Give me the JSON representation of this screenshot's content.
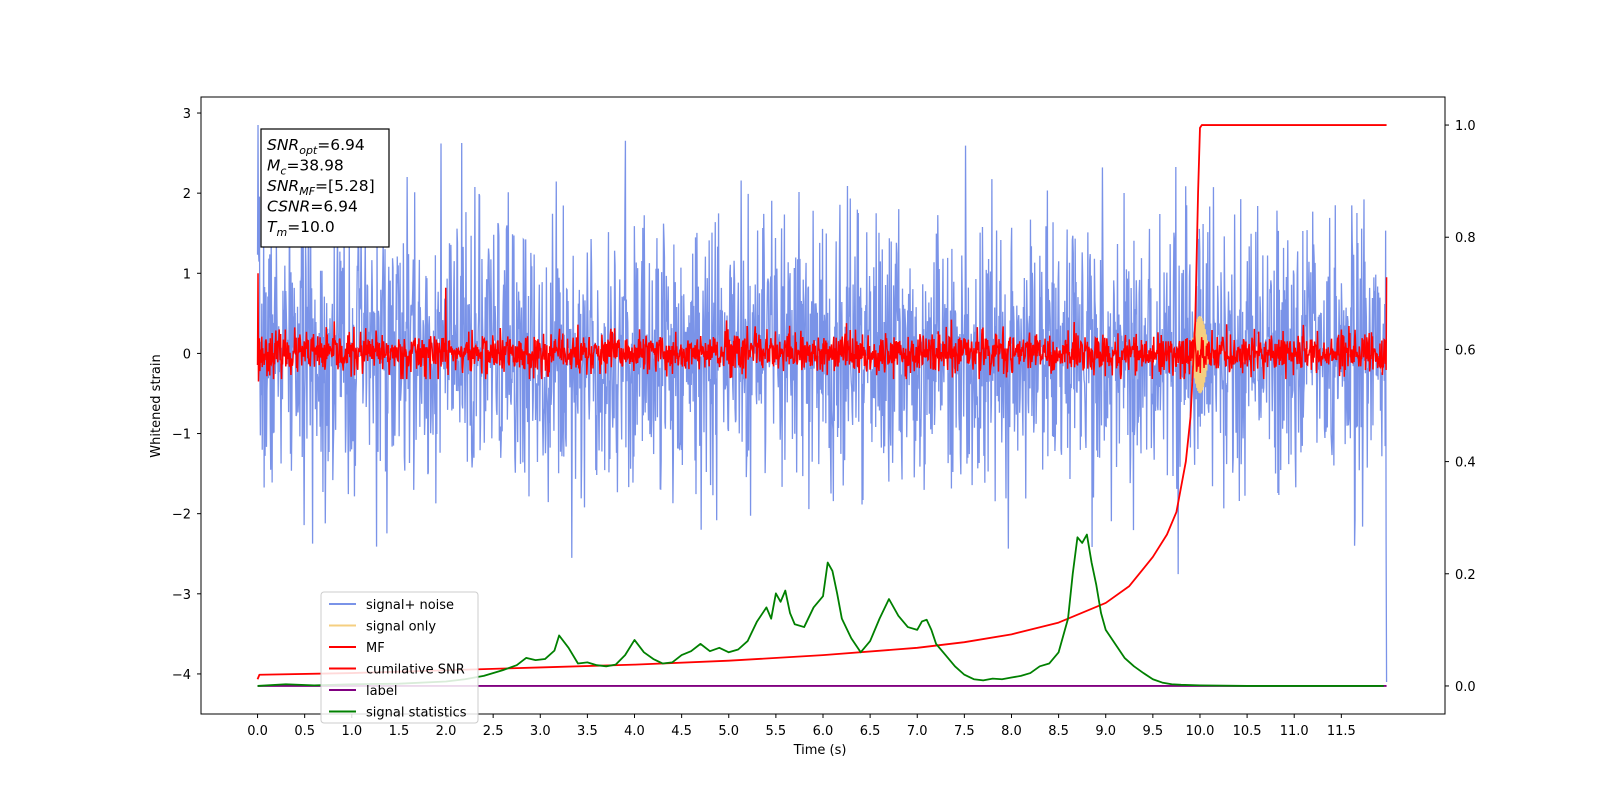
{
  "chart_data": {
    "type": "line",
    "xlabel": "Time (s)",
    "ylabel": "Whitened strain",
    "xlim": [
      -0.6,
      12.6
    ],
    "ylim": [
      -4.5,
      3.2
    ],
    "y2lim": [
      -0.05,
      1.05
    ],
    "x_ticks": [
      "0.0",
      "0.5",
      "1.0",
      "1.5",
      "2.0",
      "2.5",
      "3.0",
      "3.5",
      "4.0",
      "4.5",
      "5.0",
      "5.5",
      "6.0",
      "6.5",
      "7.0",
      "7.5",
      "8.0",
      "8.5",
      "9.0",
      "9.5",
      "10.0",
      "10.5",
      "11.0",
      "11.5"
    ],
    "y_ticks": [
      "3",
      "2",
      "1",
      "0",
      "−1",
      "−2",
      "−3",
      "−4"
    ],
    "y2_ticks": [
      "1.0",
      "0.8",
      "0.6",
      "0.4",
      "0.2",
      "0.0"
    ],
    "annotation_lines": [
      {
        "var": "SNR",
        "sub": "opt",
        "rest": "=6.94"
      },
      {
        "var": "M",
        "sub": "c",
        "rest": "=38.98"
      },
      {
        "var": "SNR",
        "sub": "MF",
        "rest": "=[5.28]"
      },
      {
        "var": "CSNR",
        "sub": "",
        "rest": "=6.94"
      },
      {
        "var": "T",
        "sub": "m",
        "rest": "=10.0"
      }
    ],
    "legend": {
      "placement": "lower-left",
      "entries": [
        {
          "label": "signal+ noise",
          "color": "#7a93e8"
        },
        {
          "label": "signal only",
          "color": "#f5cf80"
        },
        {
          "label": "MF",
          "color": "#ff0000"
        },
        {
          "label": "cumilative SNR",
          "color": "#ff0000"
        },
        {
          "label": "label",
          "color": "#800080"
        },
        {
          "label": "signal statistics",
          "color": "#008000"
        }
      ]
    },
    "series": [
      {
        "name": "signal+ noise",
        "axis": "left",
        "color": "#7a93e8",
        "x_range": [
          0,
          11.98
        ],
        "amplitude_approx": 2.0
      },
      {
        "name": "signal only",
        "axis": "left",
        "color": "#f5cf80",
        "x_range": [
          9.9,
          10.1
        ],
        "peak_approx": 0.5
      },
      {
        "name": "MF",
        "axis": "left",
        "color": "#ff0000",
        "x_range": [
          0,
          11.98
        ],
        "amplitude_approx": 0.4
      },
      {
        "name": "cumilative SNR",
        "axis": "right",
        "color": "#ff0000",
        "x": [
          0.0,
          0.02,
          1.0,
          2.0,
          3.0,
          4.0,
          5.0,
          6.0,
          7.0,
          7.5,
          8.0,
          8.5,
          9.0,
          9.25,
          9.5,
          9.65,
          9.75,
          9.85,
          9.9,
          9.95,
          9.98,
          10.0,
          10.02,
          11.98
        ],
        "y": [
          0.012,
          0.02,
          0.023,
          0.028,
          0.033,
          0.038,
          0.045,
          0.055,
          0.068,
          0.078,
          0.092,
          0.113,
          0.148,
          0.178,
          0.23,
          0.27,
          0.31,
          0.4,
          0.48,
          0.65,
          0.88,
          0.995,
          1.0,
          1.0
        ]
      },
      {
        "name": "label",
        "axis": "right",
        "color": "#800080",
        "x": [
          0.0,
          11.98
        ],
        "y": [
          0.0,
          0.0
        ]
      },
      {
        "name": "signal statistics",
        "axis": "right",
        "color": "#008000",
        "x": [
          0.0,
          0.3,
          0.6,
          1.0,
          1.5,
          2.0,
          2.2,
          2.4,
          2.6,
          2.75,
          2.85,
          2.95,
          3.05,
          3.15,
          3.2,
          3.3,
          3.4,
          3.5,
          3.6,
          3.7,
          3.8,
          3.9,
          4.0,
          4.1,
          4.2,
          4.3,
          4.4,
          4.5,
          4.6,
          4.7,
          4.8,
          4.9,
          5.0,
          5.1,
          5.2,
          5.3,
          5.4,
          5.45,
          5.5,
          5.55,
          5.6,
          5.65,
          5.7,
          5.8,
          5.9,
          6.0,
          6.05,
          6.1,
          6.15,
          6.2,
          6.3,
          6.4,
          6.5,
          6.6,
          6.7,
          6.8,
          6.9,
          7.0,
          7.05,
          7.1,
          7.15,
          7.2,
          7.3,
          7.4,
          7.5,
          7.6,
          7.7,
          7.8,
          7.9,
          8.0,
          8.1,
          8.2,
          8.3,
          8.4,
          8.5,
          8.6,
          8.65,
          8.7,
          8.75,
          8.8,
          8.85,
          8.9,
          8.95,
          9.0,
          9.1,
          9.2,
          9.3,
          9.4,
          9.5,
          9.6,
          9.7,
          9.8,
          10.0,
          10.5,
          11.0,
          11.5,
          11.95
        ],
        "y": [
          0.0,
          0.003,
          0.001,
          0.003,
          0.004,
          0.008,
          0.012,
          0.018,
          0.028,
          0.037,
          0.05,
          0.046,
          0.048,
          0.063,
          0.09,
          0.068,
          0.04,
          0.042,
          0.037,
          0.035,
          0.038,
          0.055,
          0.082,
          0.06,
          0.048,
          0.04,
          0.042,
          0.055,
          0.062,
          0.075,
          0.062,
          0.068,
          0.06,
          0.065,
          0.08,
          0.115,
          0.14,
          0.12,
          0.165,
          0.15,
          0.17,
          0.13,
          0.11,
          0.105,
          0.14,
          0.16,
          0.22,
          0.205,
          0.165,
          0.12,
          0.085,
          0.06,
          0.08,
          0.12,
          0.155,
          0.125,
          0.105,
          0.1,
          0.115,
          0.118,
          0.1,
          0.075,
          0.055,
          0.035,
          0.02,
          0.012,
          0.01,
          0.013,
          0.012,
          0.015,
          0.018,
          0.023,
          0.035,
          0.04,
          0.06,
          0.12,
          0.2,
          0.265,
          0.255,
          0.27,
          0.22,
          0.18,
          0.13,
          0.1,
          0.075,
          0.05,
          0.035,
          0.023,
          0.012,
          0.006,
          0.003,
          0.002,
          0.001,
          0.0,
          0.0,
          0.0,
          0.0
        ]
      }
    ]
  }
}
